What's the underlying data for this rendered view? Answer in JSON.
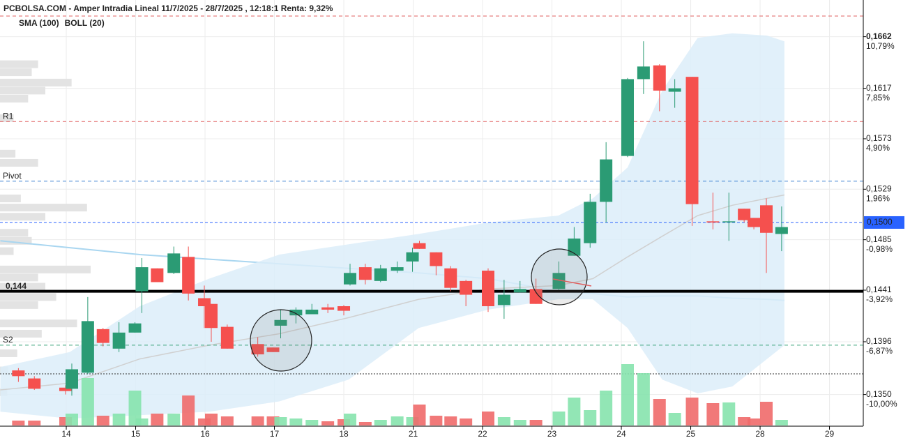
{
  "chart_data": {
    "type": "candlestick",
    "title": "PCBOLSA.COM - Amper Intradia Lineal 11/7/2025 - 28/7/2025 , 12:18:1 Renta: 9,32%",
    "xlim": [
      -0.955,
      11.487
    ],
    "ylim": [
      0.1323,
      0.1694
    ],
    "xticks": [
      {
        "value": 0,
        "label": "14"
      },
      {
        "value": 1,
        "label": "15"
      },
      {
        "value": 2,
        "label": "16"
      },
      {
        "value": 3,
        "label": "17"
      },
      {
        "value": 4,
        "label": "18"
      },
      {
        "value": 5,
        "label": "21"
      },
      {
        "value": 6,
        "label": "22"
      },
      {
        "value": 7,
        "label": "23"
      },
      {
        "value": 8,
        "label": "24"
      },
      {
        "value": 9,
        "label": "25"
      },
      {
        "value": 10,
        "label": "28"
      },
      {
        "value": 11,
        "label": "29"
      }
    ],
    "yticks": [
      {
        "value": 0.1662,
        "label": "0,1662",
        "change": "10,79%"
      },
      {
        "value": 0.1617,
        "label": "0,1617",
        "change": "7,85%"
      },
      {
        "value": 0.1573,
        "label": "0,1573",
        "change": "4,90%"
      },
      {
        "value": 0.1529,
        "label": "0,1529",
        "change": "1,96%"
      },
      {
        "value": 0.1485,
        "label": "0,1485",
        "change": "-0,98%"
      },
      {
        "value": 0.1441,
        "label": "0,1441",
        "change": "-3,92%"
      },
      {
        "value": 0.1396,
        "label": "0,1396",
        "change": "-6,87%"
      },
      {
        "value": 0.135,
        "label": "0,1350",
        "change": "-10,00%"
      }
    ],
    "grid": true,
    "up_color": "#2b9b74",
    "down_color": "#f5504e",
    "volume_up_color": "#86e3ad",
    "volume_down_color": "#f06a6a",
    "candles": {
      "x": [
        -0.69,
        -0.46,
        -0.01,
        0.08,
        0.31,
        0.53,
        0.76,
        0.99,
        1.09,
        1.31,
        1.55,
        1.76,
        1.99,
        2.09,
        2.32,
        2.76,
        2.98,
        3.09,
        3.31,
        3.54,
        3.77,
        4.0,
        4.09,
        4.31,
        4.53,
        4.77,
        4.99,
        5.09,
        5.33,
        5.54,
        5.76,
        6.08,
        6.31,
        6.54,
        6.77,
        7.1,
        7.32,
        7.55,
        7.78,
        8.09,
        8.32,
        8.55,
        8.77,
        9.02,
        9.32,
        9.55,
        9.77,
        9.91,
        10.09,
        10.31
      ],
      "open": [
        0.1371,
        0.1364,
        0.1356,
        0.1355,
        0.1369,
        0.1407,
        0.139,
        0.1404,
        0.144,
        0.146,
        0.1456,
        0.147,
        0.1434,
        0.1429,
        0.1409,
        0.1394,
        0.1391,
        0.141,
        0.1419,
        0.142,
        0.1426,
        0.1427,
        0.1446,
        0.1461,
        0.1449,
        0.1458,
        0.1466,
        0.1482,
        0.1474,
        0.146,
        0.1449,
        0.1458,
        0.1428,
        0.1439,
        0.1442,
        0.1442,
        0.1471,
        0.1482,
        0.1518,
        0.1558,
        0.1625,
        0.1637,
        0.1614,
        0.1627,
        0.1501,
        0.1501,
        0.1512,
        0.1504,
        0.1515,
        0.149
      ],
      "high": [
        0.1373,
        0.1366,
        0.1358,
        0.1377,
        0.1435,
        0.1408,
        0.1413,
        0.1413,
        0.1469,
        0.146,
        0.1479,
        0.1479,
        0.1445,
        0.1429,
        0.1411,
        0.14,
        0.1391,
        0.1424,
        0.1426,
        0.1429,
        0.1429,
        0.1428,
        0.1464,
        0.1464,
        0.1463,
        0.1466,
        0.1478,
        0.1484,
        0.1474,
        0.1462,
        0.145,
        0.146,
        0.145,
        0.1449,
        0.1451,
        0.1466,
        0.1496,
        0.1525,
        0.157,
        0.1626,
        0.1658,
        0.1638,
        0.1625,
        0.1627,
        0.1526,
        0.1526,
        0.1512,
        0.1504,
        0.1521,
        0.1514
      ],
      "low": [
        0.1361,
        0.1354,
        0.135,
        0.1349,
        0.1368,
        0.1392,
        0.1387,
        0.1404,
        0.1421,
        0.1448,
        0.1455,
        0.1432,
        0.1408,
        0.1396,
        0.139,
        0.1383,
        0.1387,
        0.1399,
        0.1412,
        0.142,
        0.1421,
        0.1419,
        0.1445,
        0.1446,
        0.1448,
        0.1456,
        0.1457,
        0.1477,
        0.1454,
        0.144,
        0.1427,
        0.1422,
        0.1416,
        0.1439,
        0.1429,
        0.1441,
        0.1471,
        0.1478,
        0.15,
        0.1557,
        0.1612,
        0.1597,
        0.16,
        0.1497,
        0.1494,
        0.1484,
        0.15,
        0.1494,
        0.1456,
        0.1475
      ],
      "close": [
        0.1366,
        0.1355,
        0.1353,
        0.1372,
        0.1414,
        0.1395,
        0.1404,
        0.1412,
        0.1461,
        0.1448,
        0.1473,
        0.1438,
        0.1427,
        0.1408,
        0.139,
        0.1385,
        0.1387,
        0.1415,
        0.1424,
        0.1424,
        0.1424,
        0.1423,
        0.1456,
        0.145,
        0.146,
        0.1461,
        0.1474,
        0.1477,
        0.1462,
        0.1443,
        0.1437,
        0.1427,
        0.1437,
        0.1442,
        0.1429,
        0.1456,
        0.1486,
        0.1518,
        0.1555,
        0.1625,
        0.1636,
        0.1615,
        0.1617,
        0.1516,
        0.15,
        0.1501,
        0.1502,
        0.1496,
        0.1491,
        0.1496
      ],
      "volume": [
        7,
        7,
        12,
        17,
        68,
        14,
        17,
        50,
        10,
        17,
        17,
        43,
        10,
        17,
        13,
        13,
        13,
        12,
        10,
        8,
        6,
        9,
        17,
        5,
        8,
        13,
        12,
        30,
        14,
        13,
        10,
        20,
        12,
        8,
        8,
        20,
        40,
        22,
        50,
        88,
        75,
        38,
        18,
        40,
        32,
        33,
        12,
        10,
        34,
        8
      ]
    },
    "volume_lim": [
      0,
      100
    ],
    "indicators": [
      {
        "name": "SMA (100)",
        "color": "#a9d6f0",
        "x": [
          -0.95,
          0.05,
          1.06,
          2.06,
          3.07,
          4.07,
          5.08,
          6.08,
          7.09,
          7.59,
          8.09,
          8.59,
          9.1,
          9.6,
          10.1,
          10.35
        ],
        "values": [
          0.1484,
          0.1478,
          0.1472,
          0.1468,
          0.1464,
          0.146,
          0.1456,
          0.1451,
          0.144,
          0.1438,
          0.1435,
          0.1436,
          0.1436,
          0.1434,
          0.1433,
          0.1432
        ]
      },
      {
        "name": "BOLL (20)",
        "color": "#d0d0d0",
        "fill": "#dcedf9",
        "x": [
          -0.95,
          0.05,
          1.06,
          2.06,
          3.07,
          4.07,
          5.08,
          6.08,
          7.09,
          7.59,
          8.09,
          8.59,
          9.1,
          9.6,
          10.1,
          10.35
        ],
        "upper": [
          0.1374,
          0.1387,
          0.1427,
          0.1451,
          0.1472,
          0.1481,
          0.149,
          0.15,
          0.1506,
          0.1521,
          0.1548,
          0.1615,
          0.1661,
          0.1665,
          0.1663,
          0.1658
        ],
        "middle": [
          0.1354,
          0.136,
          0.1381,
          0.1393,
          0.1403,
          0.1417,
          0.1433,
          0.1442,
          0.1445,
          0.1451,
          0.147,
          0.1488,
          0.1506,
          0.1515,
          0.1521,
          0.1524
        ],
        "lower": [
          0.1335,
          0.1329,
          0.1332,
          0.1335,
          0.1344,
          0.1363,
          0.1408,
          0.1424,
          0.1433,
          0.1433,
          0.1408,
          0.1363,
          0.1351,
          0.1357,
          0.1381,
          0.1393
        ]
      }
    ],
    "levels": [
      {
        "value": 0.168,
        "color": "#e06060",
        "style": "dashed"
      },
      {
        "label": "R1",
        "value": 0.1588,
        "color": "#e06060",
        "style": "dashed"
      },
      {
        "label": "Pivot",
        "value": 0.1536,
        "color": "#3a80d0",
        "style": "dashed"
      },
      {
        "label": "0,144",
        "value": 0.144,
        "color": "#000000",
        "style": "thick"
      },
      {
        "label": "S2",
        "value": 0.1393,
        "color": "#3aa37a",
        "style": "dashed"
      },
      {
        "value": 0.1368,
        "color": "#333333",
        "style": "dotted"
      }
    ],
    "last_price": {
      "value": 0.15,
      "label": "0,1500",
      "color": "#2962ff"
    },
    "volume_profile": {
      "prices": [
        0.1638,
        0.1631,
        0.1622,
        0.1615,
        0.1608,
        0.1591,
        0.156,
        0.1552,
        0.1521,
        0.1513,
        0.1505,
        0.1491,
        0.1484,
        0.1475,
        0.1459,
        0.1452,
        0.1444,
        0.1435,
        0.1428,
        0.1412,
        0.1403,
        0.1386,
        0.1371,
        0.1352
      ],
      "values": [
        42,
        35,
        79,
        50,
        31,
        15,
        17,
        42,
        23,
        96,
        50,
        31,
        35,
        15,
        100,
        42,
        50,
        62,
        42,
        85,
        46,
        19,
        9,
        8
      ],
      "lim": [
        0,
        100
      ],
      "color": "#e3e3e3"
    }
  }
}
